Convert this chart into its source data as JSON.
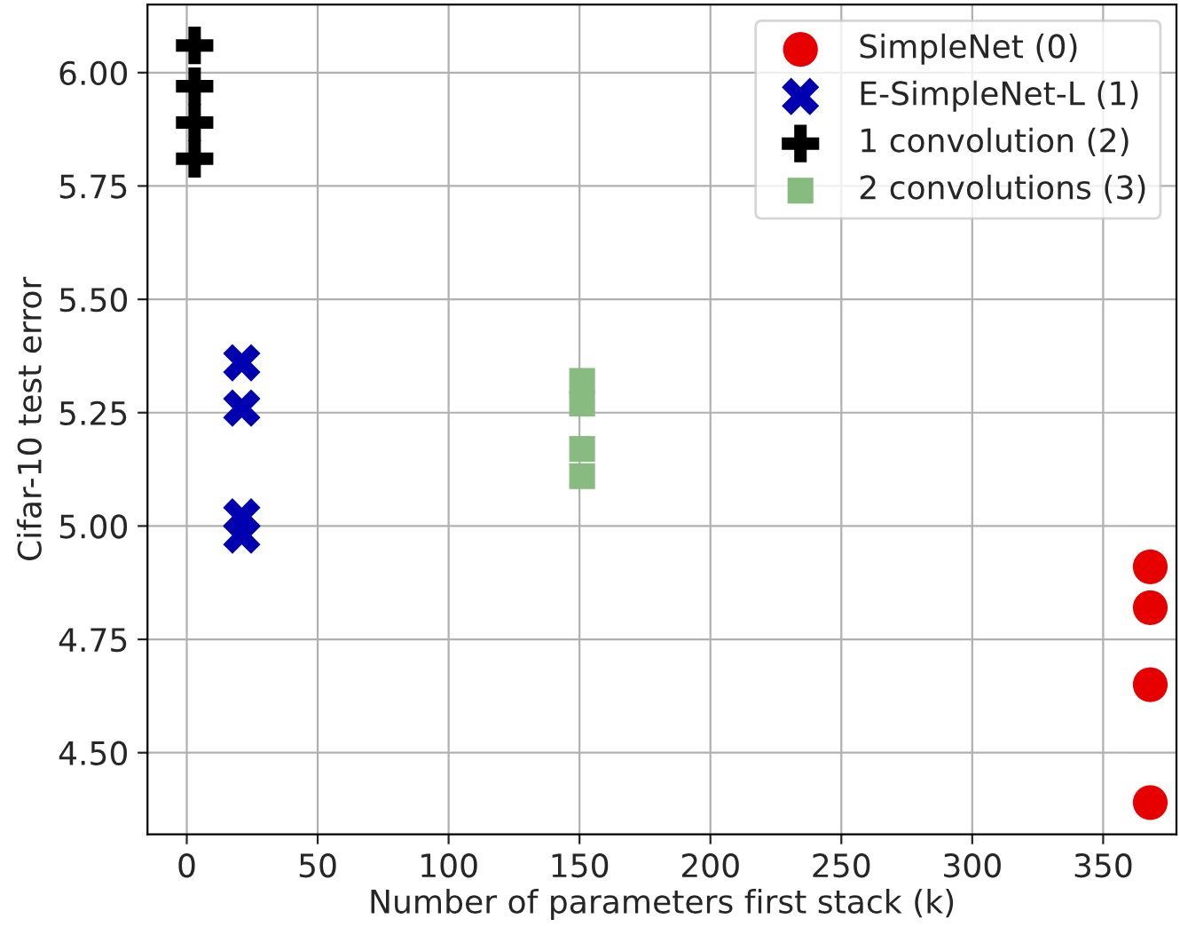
{
  "chart_data": {
    "type": "scatter",
    "xlabel": "Number of parameters first stack (k)",
    "ylabel": "Cifar-10 test error",
    "xlim": [
      -15,
      378
    ],
    "ylim": [
      4.32,
      6.15
    ],
    "xticks": [
      0,
      50,
      100,
      150,
      200,
      250,
      300,
      350
    ],
    "yticks": [
      {
        "value": 4.5,
        "label": "4.50"
      },
      {
        "value": 4.75,
        "label": "4.75"
      },
      {
        "value": 5.0,
        "label": "5.00"
      },
      {
        "value": 5.25,
        "label": "5.25"
      },
      {
        "value": 5.5,
        "label": "5.50"
      },
      {
        "value": 5.75,
        "label": "5.75"
      },
      {
        "value": 6.0,
        "label": "6.00"
      }
    ],
    "grid": true,
    "legend": "top right",
    "series": [
      {
        "name": "SimpleNet (0)",
        "color": "#e60000",
        "marker": "circle",
        "x": [
          368,
          368,
          368,
          368
        ],
        "values": [
          4.91,
          4.82,
          4.65,
          4.39
        ]
      },
      {
        "name": "E-SimpleNet-L (1)",
        "color": "#0000b0",
        "marker": "cross",
        "x": [
          21,
          21,
          21,
          21
        ],
        "values": [
          5.36,
          5.26,
          5.02,
          4.98
        ]
      },
      {
        "name": "1 convolution (2)",
        "color": "#000000",
        "marker": "plus",
        "x": [
          3,
          3,
          3,
          3
        ],
        "values": [
          6.06,
          5.97,
          5.89,
          5.81
        ]
      },
      {
        "name": "2 convolutions (3)",
        "color": "#88bb80",
        "marker": "square",
        "x": [
          151,
          151,
          151,
          151
        ],
        "values": [
          5.32,
          5.27,
          5.17,
          5.11
        ]
      }
    ]
  }
}
